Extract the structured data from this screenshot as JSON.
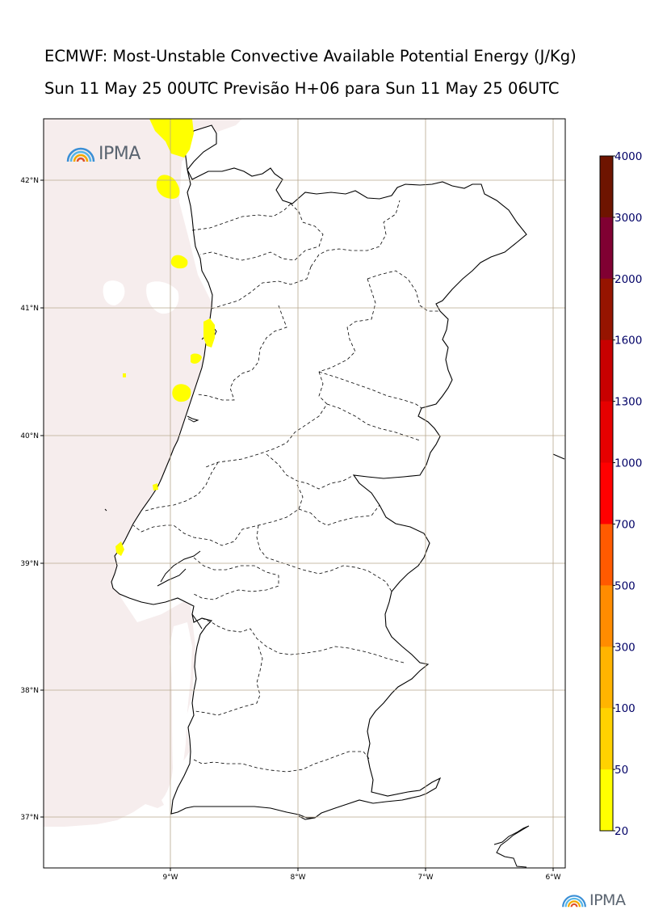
{
  "title_line1": "ECMWF: Most-Unstable Convective Available Potential Energy (J/Kg)",
  "title_line2": "Sun 11 May 25 00UTC Previsão H+06 para Sun 11 May 25 06UTC",
  "logo_text": "IPMA",
  "footer_logo_text": "IPMA",
  "map": {
    "lon_range": [
      -10.0,
      -5.9
    ],
    "lat_range": [
      36.6,
      42.5
    ],
    "lon_ticks": [
      "9°W",
      "8°W",
      "7°W",
      "6°W"
    ],
    "lat_ticks": [
      "42°N",
      "41°N",
      "40°N",
      "39°N",
      "38°N",
      "37°N"
    ],
    "grid": true
  },
  "colorbar": {
    "levels": [
      "4000",
      "3000",
      "2000",
      "1600",
      "1300",
      "1000",
      "700",
      "500",
      "300",
      "100",
      "50",
      "20"
    ],
    "colors": [
      "#6e1400",
      "#800032",
      "#961400",
      "#c80000",
      "#e60000",
      "#ff0000",
      "#ff5a00",
      "#ff8c00",
      "#ffb400",
      "#ffd200",
      "#ffff00",
      "#f6eded"
    ]
  }
}
